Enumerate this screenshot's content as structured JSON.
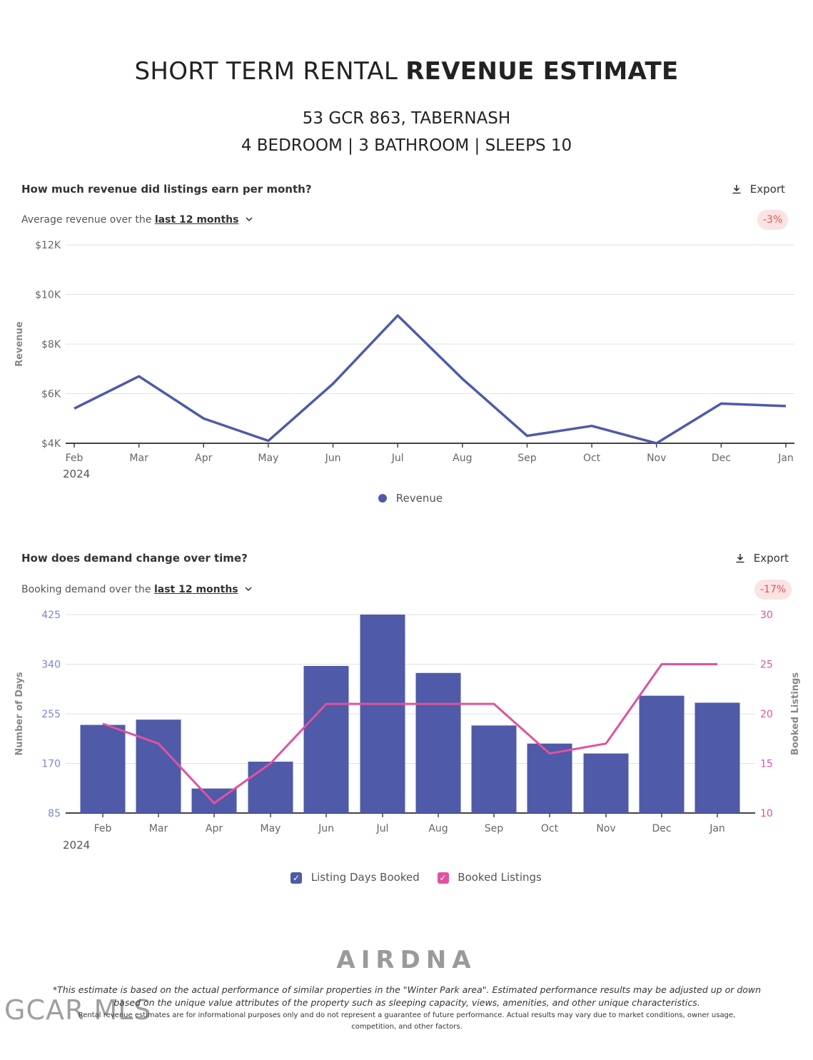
{
  "header": {
    "title_light": "SHORT TERM RENTAL",
    "title_bold": "REVENUE ESTIMATE",
    "address": "53 GCR 863, TABERNASH",
    "specs": "4 BEDROOM | 3 BATHROOM | SLEEPS 10"
  },
  "revenue_section": {
    "question": "How much revenue did listings earn per month?",
    "subtitle_prefix": "Average revenue over the",
    "period": "last 12 months",
    "export_label": "Export",
    "change_badge": "-3%",
    "year_label": "2024",
    "legend_label": "Revenue",
    "color": "#4f5aa8"
  },
  "demand_section": {
    "question": "How does demand change over time?",
    "subtitle_prefix": "Booking demand over the",
    "period": "last 12 months",
    "export_label": "Export",
    "change_badge": "-17%",
    "year_label": "2024",
    "legend_days": "Listing Days Booked",
    "legend_listings": "Booked Listings",
    "bar_color": "#4f5aa8",
    "line_color": "#e0529f"
  },
  "footer": {
    "logo_text": "AIRDNA",
    "watermark": "GCAR MLS",
    "disclaimer_1": "*This estimate is based on the actual performance of similar properties in the \"Winter Park area\". Estimated performance results may be adjusted up or down based on the unique value attributes of the property such as sleeping capacity, views, amenities, and other unique characteristics.",
    "disclaimer_2": "Rental revenue estimates are for informational purposes only and do not represent a guarantee of future performance. Actual results may vary due to market conditions, owner usage, competition, and other factors."
  },
  "chart_data": [
    {
      "type": "line",
      "title": "How much revenue did listings earn per month?",
      "categories": [
        "Feb",
        "Mar",
        "Apr",
        "May",
        "Jun",
        "Jul",
        "Aug",
        "Sep",
        "Oct",
        "Nov",
        "Dec",
        "Jan"
      ],
      "series": [
        {
          "name": "Revenue",
          "values": [
            5400,
            6700,
            5000,
            4100,
            6400,
            9150,
            6600,
            4300,
            4700,
            4000,
            5600,
            5500
          ]
        }
      ],
      "ylabel": "Revenue",
      "ylim": [
        4000,
        12000
      ],
      "yticks": [
        4000,
        6000,
        8000,
        10000,
        12000
      ],
      "ytick_labels": [
        "$4K",
        "$6K",
        "$8K",
        "$10K",
        "$12K"
      ],
      "grid": true
    },
    {
      "type": "bar",
      "title": "How does demand change over time?",
      "categories": [
        "Feb",
        "Mar",
        "Apr",
        "May",
        "Jun",
        "Jul",
        "Aug",
        "Sep",
        "Oct",
        "Nov",
        "Dec",
        "Jan"
      ],
      "series": [
        {
          "name": "Listing Days Booked",
          "type": "bar",
          "axis": "left",
          "values": [
            236,
            245,
            127,
            173,
            337,
            432,
            325,
            235,
            204,
            187,
            286,
            274
          ]
        },
        {
          "name": "Booked Listings",
          "type": "line",
          "axis": "right",
          "values": [
            19,
            17,
            11,
            15,
            21,
            21,
            21,
            21,
            16,
            17,
            25,
            25
          ]
        }
      ],
      "ylabel": "Number of Days",
      "ylabel_right": "Booked Listings",
      "ylim": [
        85,
        425
      ],
      "yticks": [
        85,
        170,
        255,
        340,
        425
      ],
      "ylim_right": [
        10,
        30
      ],
      "yticks_right": [
        10,
        15,
        20,
        25,
        30
      ],
      "grid": true
    }
  ]
}
